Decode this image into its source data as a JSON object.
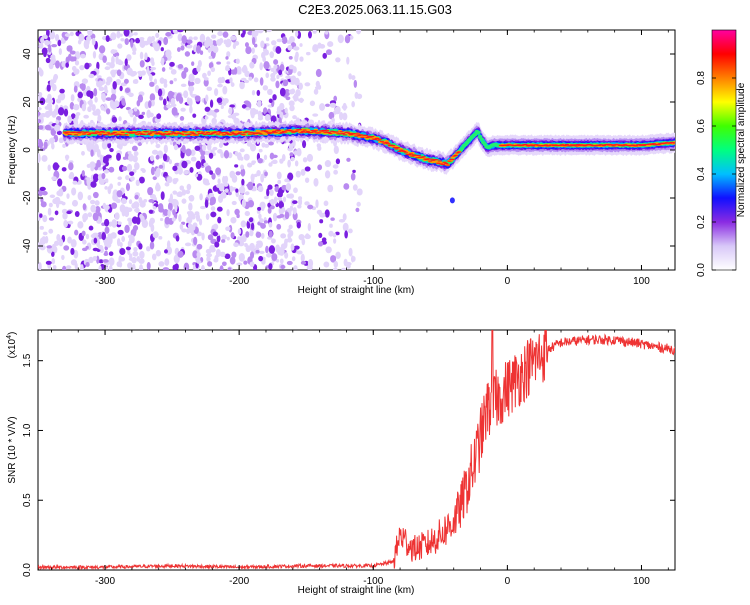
{
  "title": "C2E3.2025.063.11.15.G03",
  "chart_data": [
    {
      "type": "heatmap",
      "xlabel": "Height of straight line (km)",
      "ylabel": "Frequency (Hz)",
      "xlim": [
        -350,
        125
      ],
      "ylim": [
        -50,
        50
      ],
      "xticks": [
        -300,
        -200,
        -100,
        0,
        100
      ],
      "yticks": [
        -40,
        -20,
        0,
        20,
        40
      ],
      "colorbar": {
        "label": "Normalized spectral amplitude",
        "range": [
          0,
          1
        ],
        "ticks": [
          "0.0",
          "0.2",
          "0.4",
          "0.6",
          "0.8"
        ],
        "colors": [
          "#ffffff",
          "#d8c8f8",
          "#8a2be2",
          "#1010ff",
          "#00bfff",
          "#00ff80",
          "#40ff00",
          "#ffff00",
          "#ff8000",
          "#ff0000",
          "#ff00a0"
        ]
      },
      "ridge": {
        "x": [
          -350,
          -300,
          -250,
          -200,
          -150,
          -120,
          -100,
          -90,
          -80,
          -70,
          -60,
          -50,
          -45,
          -40,
          -35,
          -30,
          -25,
          -22,
          -20,
          -15,
          -10,
          -5,
          0,
          20,
          50,
          80,
          100,
          125
        ],
        "y": [
          7,
          7,
          7,
          7,
          8,
          7,
          5,
          3,
          0,
          -2,
          -4,
          -5,
          -6,
          -3,
          0,
          3,
          6,
          8,
          5,
          1,
          2,
          2,
          2,
          2,
          2,
          2,
          2,
          3
        ]
      }
    },
    {
      "type": "line",
      "xlabel": "Height of straight line (km)",
      "ylabel": "SNR (10 * V/V)",
      "yscale_label": "(x10",
      "yscale_exp": "4",
      "xlim": [
        -350,
        125
      ],
      "ylim": [
        0,
        1.72
      ],
      "xticks": [
        -300,
        -200,
        -100,
        0,
        100
      ],
      "yticks": [
        "0.0",
        "0.5",
        "1.0",
        "1.5"
      ],
      "color": "#ee3333",
      "series": [
        {
          "x": [
            -350,
            -300,
            -250,
            -200,
            -150,
            -100,
            -85,
            -80,
            -75,
            -70,
            -60,
            -50,
            -40,
            -35,
            -30,
            -25,
            -20,
            -15,
            -10,
            -5,
            0,
            10,
            20,
            30,
            40,
            60,
            80,
            100,
            110,
            125
          ],
          "y": [
            0.02,
            0.02,
            0.03,
            0.02,
            0.03,
            0.03,
            0.06,
            0.25,
            0.2,
            0.15,
            0.18,
            0.25,
            0.35,
            0.45,
            0.6,
            0.75,
            0.95,
            1.15,
            1.2,
            1.25,
            1.3,
            1.4,
            1.5,
            1.58,
            1.63,
            1.65,
            1.65,
            1.62,
            1.6,
            1.58
          ]
        }
      ]
    }
  ]
}
